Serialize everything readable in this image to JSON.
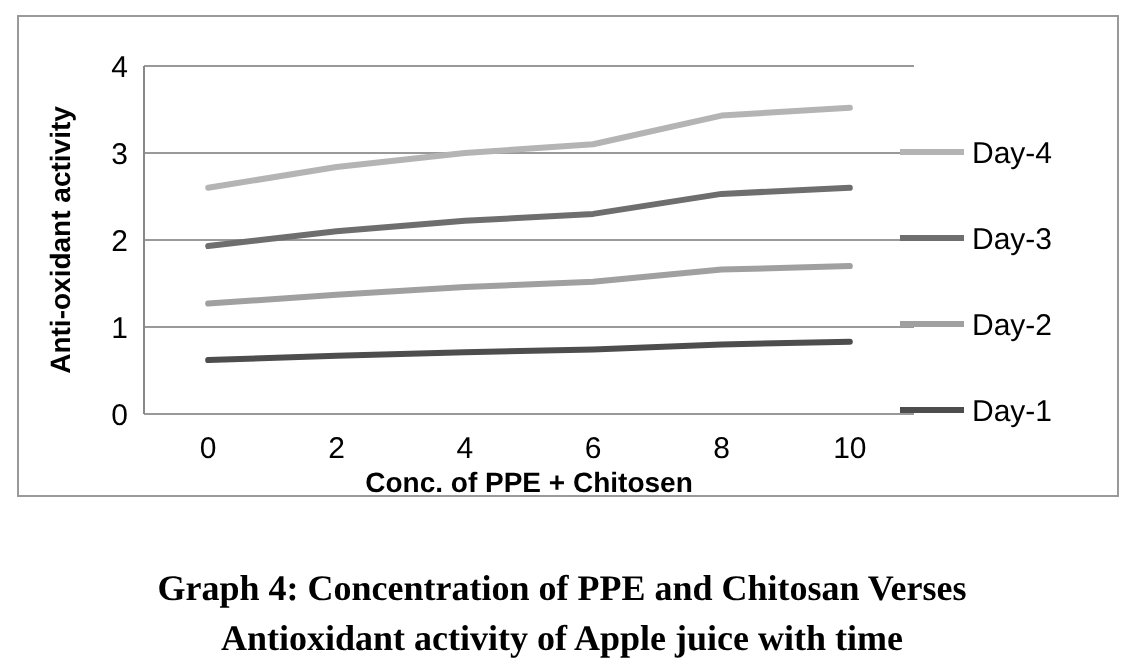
{
  "chart_data": {
    "type": "line",
    "title": "Graph 4: Concentration of PPE and Chitosan Verses Antioxidant activity of Apple juice with time",
    "xlabel": "Conc. of PPE + Chitosen",
    "ylabel": "Anti-oxidant activity",
    "categories": [
      "0",
      "2",
      "4",
      "6",
      "8",
      "10"
    ],
    "series": [
      {
        "name": "Day-4",
        "color": "#b4b4b4",
        "values": [
          2.6,
          2.84,
          3.0,
          3.1,
          3.43,
          3.52
        ]
      },
      {
        "name": "Day-3",
        "color": "#6e6e6e",
        "values": [
          1.93,
          2.1,
          2.22,
          2.3,
          2.53,
          2.6
        ]
      },
      {
        "name": "Day-2",
        "color": "#a0a0a0",
        "values": [
          1.27,
          1.37,
          1.46,
          1.52,
          1.66,
          1.7
        ]
      },
      {
        "name": "Day-1",
        "color": "#4d4d4d",
        "values": [
          0.62,
          0.67,
          0.71,
          0.74,
          0.8,
          0.83
        ]
      }
    ],
    "ylim": [
      0,
      4
    ],
    "yticks": [
      0,
      1,
      2,
      3,
      4
    ],
    "grid": "y",
    "legend": "right",
    "marker": "none",
    "line_style": "solid"
  }
}
